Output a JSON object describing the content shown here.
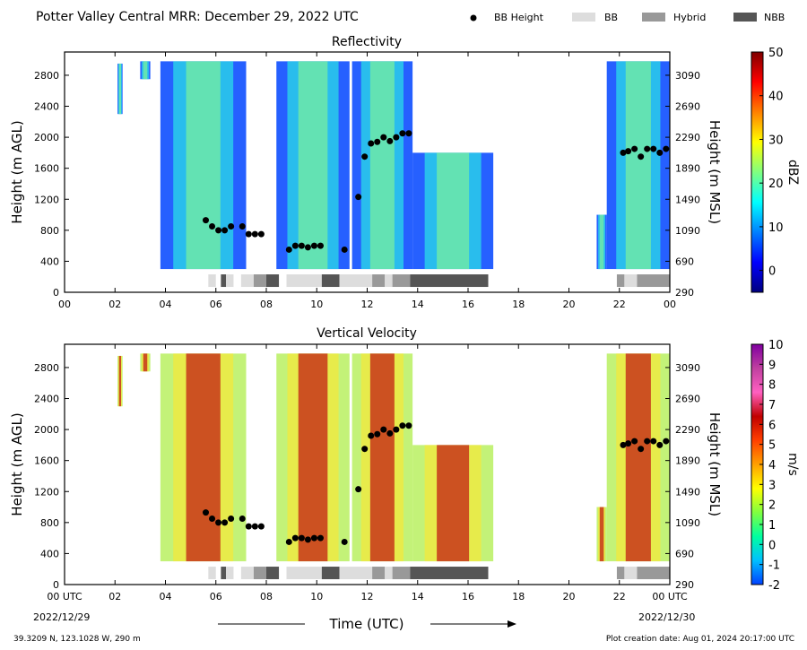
{
  "header": {
    "title": "Potter Valley Central MRR:  December 29, 2022 UTC",
    "legend": [
      {
        "label": "BB Height",
        "kind": "dot",
        "color": "#000000"
      },
      {
        "label": "BB",
        "kind": "swatch",
        "color": "#dddddd"
      },
      {
        "label": "Hybrid",
        "kind": "swatch",
        "color": "#999999"
      },
      {
        "label": "NBB",
        "kind": "swatch",
        "color": "#555555"
      }
    ]
  },
  "footer": {
    "location": "39.3209 N, 123.1028 W, 290 m",
    "creation_date": "Plot creation date: Aug 01, 2024 20:17:00 UTC",
    "xlabel": "Time (UTC)",
    "start_date": "2022/12/29",
    "end_date": "2022/12/30",
    "start_suffix": "00 UTC",
    "end_suffix": "00 UTC"
  },
  "chart_data": [
    {
      "type": "heatmap",
      "title": "Reflectivity",
      "ylabel": "Height (m AGL)",
      "ylabel_right": "Height (m MSL)",
      "colorbar_label": "dBZ",
      "colorbar_ticks": [
        "50",
        "40",
        "30",
        "20",
        "10",
        "0"
      ],
      "colorbar_range": [
        -5,
        50
      ],
      "colorbar_colors": [
        "#00007f",
        "#0000ff",
        "#0080ff",
        "#00ffff",
        "#80ff80",
        "#ffff00",
        "#ff8000",
        "#ff0000",
        "#7f0000"
      ],
      "xlim": [
        0,
        24
      ],
      "ylim": [
        0,
        3100
      ],
      "xticks": [
        "00",
        "02",
        "04",
        "06",
        "08",
        "10",
        "12",
        "14",
        "16",
        "18",
        "20",
        "22",
        "00"
      ],
      "yticks": [
        0,
        400,
        800,
        1200,
        1600,
        2000,
        2400,
        2800
      ],
      "yticks_right": [
        290,
        690,
        1090,
        1490,
        1890,
        2290,
        2690,
        3090
      ]
    },
    {
      "type": "heatmap",
      "title": "Vertical Velocity",
      "ylabel": "Height (m AGL)",
      "ylabel_right": "Height (m MSL)",
      "colorbar_label": "m/s",
      "colorbar_ticks": [
        "10",
        "9",
        "8",
        "7",
        "6",
        "5",
        "4",
        "3",
        "2",
        "1",
        "0",
        "-1",
        "-2"
      ],
      "colorbar_range": [
        -2,
        10
      ],
      "colorbar_colors": [
        "#0040ff",
        "#00c0ff",
        "#00ffa0",
        "#80ff40",
        "#ffff00",
        "#ffa000",
        "#ff4000",
        "#c00000",
        "#ff60c0",
        "#c040a0",
        "#8000a0"
      ],
      "xlim": [
        0,
        24
      ],
      "ylim": [
        0,
        3100
      ],
      "xticks": [
        "00 UTC",
        "02",
        "04",
        "06",
        "08",
        "10",
        "12",
        "14",
        "16",
        "18",
        "20",
        "22",
        "00 UTC"
      ],
      "yticks": [
        0,
        400,
        800,
        1200,
        1600,
        2000,
        2400,
        2800
      ],
      "yticks_right": [
        290,
        690,
        1090,
        1490,
        1890,
        2290,
        2690,
        3090
      ]
    }
  ],
  "bb_height": [
    [
      5.6,
      930
    ],
    [
      5.85,
      850
    ],
    [
      6.1,
      800
    ],
    [
      6.35,
      800
    ],
    [
      6.6,
      850
    ],
    [
      7.05,
      850
    ],
    [
      7.3,
      750
    ],
    [
      7.55,
      750
    ],
    [
      7.8,
      750
    ],
    [
      8.9,
      550
    ],
    [
      9.15,
      600
    ],
    [
      9.4,
      600
    ],
    [
      9.65,
      580
    ],
    [
      9.9,
      600
    ],
    [
      10.15,
      600
    ],
    [
      11.1,
      550
    ],
    [
      11.65,
      1230
    ],
    [
      11.9,
      1750
    ],
    [
      12.15,
      1920
    ],
    [
      12.4,
      1940
    ],
    [
      12.65,
      2000
    ],
    [
      12.9,
      1950
    ],
    [
      13.15,
      2000
    ],
    [
      13.4,
      2050
    ],
    [
      13.65,
      2050
    ],
    [
      22.15,
      1800
    ],
    [
      22.35,
      1820
    ],
    [
      22.6,
      1850
    ],
    [
      22.85,
      1750
    ],
    [
      23.1,
      1850
    ],
    [
      23.35,
      1850
    ],
    [
      23.6,
      1800
    ],
    [
      23.85,
      1850
    ]
  ],
  "bb_type": [
    {
      "start": 5.7,
      "end": 6.0,
      "type": "BB"
    },
    {
      "start": 6.2,
      "end": 6.4,
      "type": "NBB"
    },
    {
      "start": 6.4,
      "end": 6.7,
      "type": "BB"
    },
    {
      "start": 7.0,
      "end": 7.5,
      "type": "BB"
    },
    {
      "start": 7.5,
      "end": 8.0,
      "type": "Hybrid"
    },
    {
      "start": 8.0,
      "end": 8.5,
      "type": "NBB"
    },
    {
      "start": 8.8,
      "end": 10.2,
      "type": "BB"
    },
    {
      "start": 10.2,
      "end": 10.9,
      "type": "NBB"
    },
    {
      "start": 10.9,
      "end": 12.2,
      "type": "BB"
    },
    {
      "start": 12.2,
      "end": 12.7,
      "type": "Hybrid"
    },
    {
      "start": 12.7,
      "end": 13.0,
      "type": "BB"
    },
    {
      "start": 13.0,
      "end": 13.7,
      "type": "Hybrid"
    },
    {
      "start": 13.7,
      "end": 16.8,
      "type": "NBB"
    },
    {
      "start": 21.9,
      "end": 22.2,
      "type": "Hybrid"
    },
    {
      "start": 22.2,
      "end": 22.7,
      "type": "BB"
    },
    {
      "start": 22.7,
      "end": 24.0,
      "type": "Hybrid"
    }
  ]
}
